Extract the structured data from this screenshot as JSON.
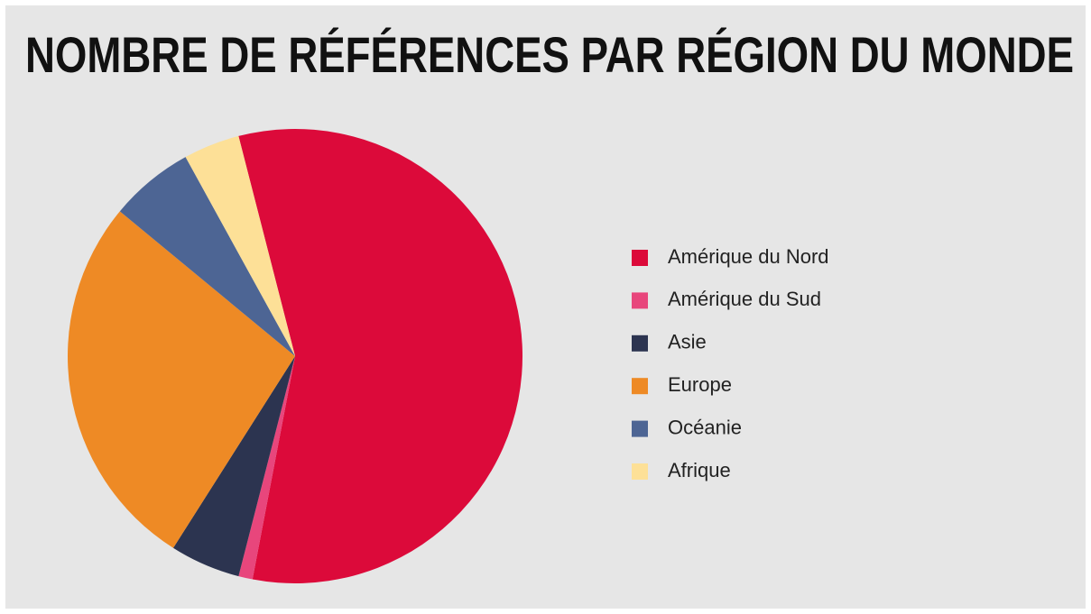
{
  "chart_data": {
    "type": "pie",
    "title": "NOMBRE DE RÉFÉRENCES PAR RÉGION DU MONDE",
    "categories": [
      "Amérique du Nord",
      "Amérique du Sud",
      "Asie",
      "Europe",
      "Océanie",
      "Afrique"
    ],
    "values": [
      57,
      1,
      5,
      27,
      6,
      4
    ],
    "colors": [
      "#dc0a3a",
      "#e8467c",
      "#2c3450",
      "#ee8a25",
      "#4d6594",
      "#fde097"
    ],
    "legend": "right"
  }
}
